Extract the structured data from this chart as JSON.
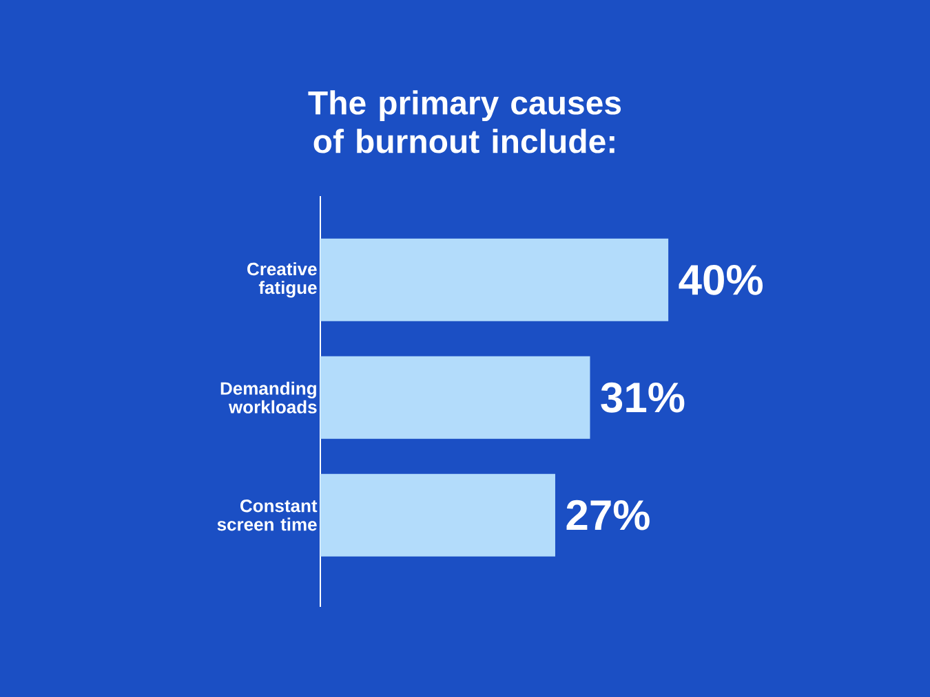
{
  "chart_data": {
    "type": "bar",
    "orientation": "horizontal",
    "title": "The primary causes of burnout include:",
    "categories": [
      "Creative fatigue",
      "Demanding workloads",
      "Constant screen time"
    ],
    "values": [
      40,
      31,
      27
    ],
    "value_labels": [
      "40%",
      "31%",
      "27%"
    ],
    "color": "#b3dcfb"
  }
}
